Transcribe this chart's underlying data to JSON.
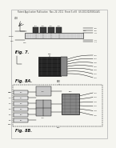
{
  "background_color": "#f5f5f0",
  "header_text": "Patent Application Publication   Nov. 24, 2011  Sheet 5 of 8   US 2011/0290814 A1",
  "header_fontsize": 1.8,
  "fig7_label": "Fig. 7.",
  "fig8a_label": "Fig. 8A.",
  "fig8b_label": "Fig. 8B.",
  "dark": "#1a1a1a",
  "mid_gray": "#666666",
  "light_gray": "#aaaaaa",
  "line_lw": 0.35,
  "label_fs": 2.2,
  "fig_label_fs": 3.5
}
